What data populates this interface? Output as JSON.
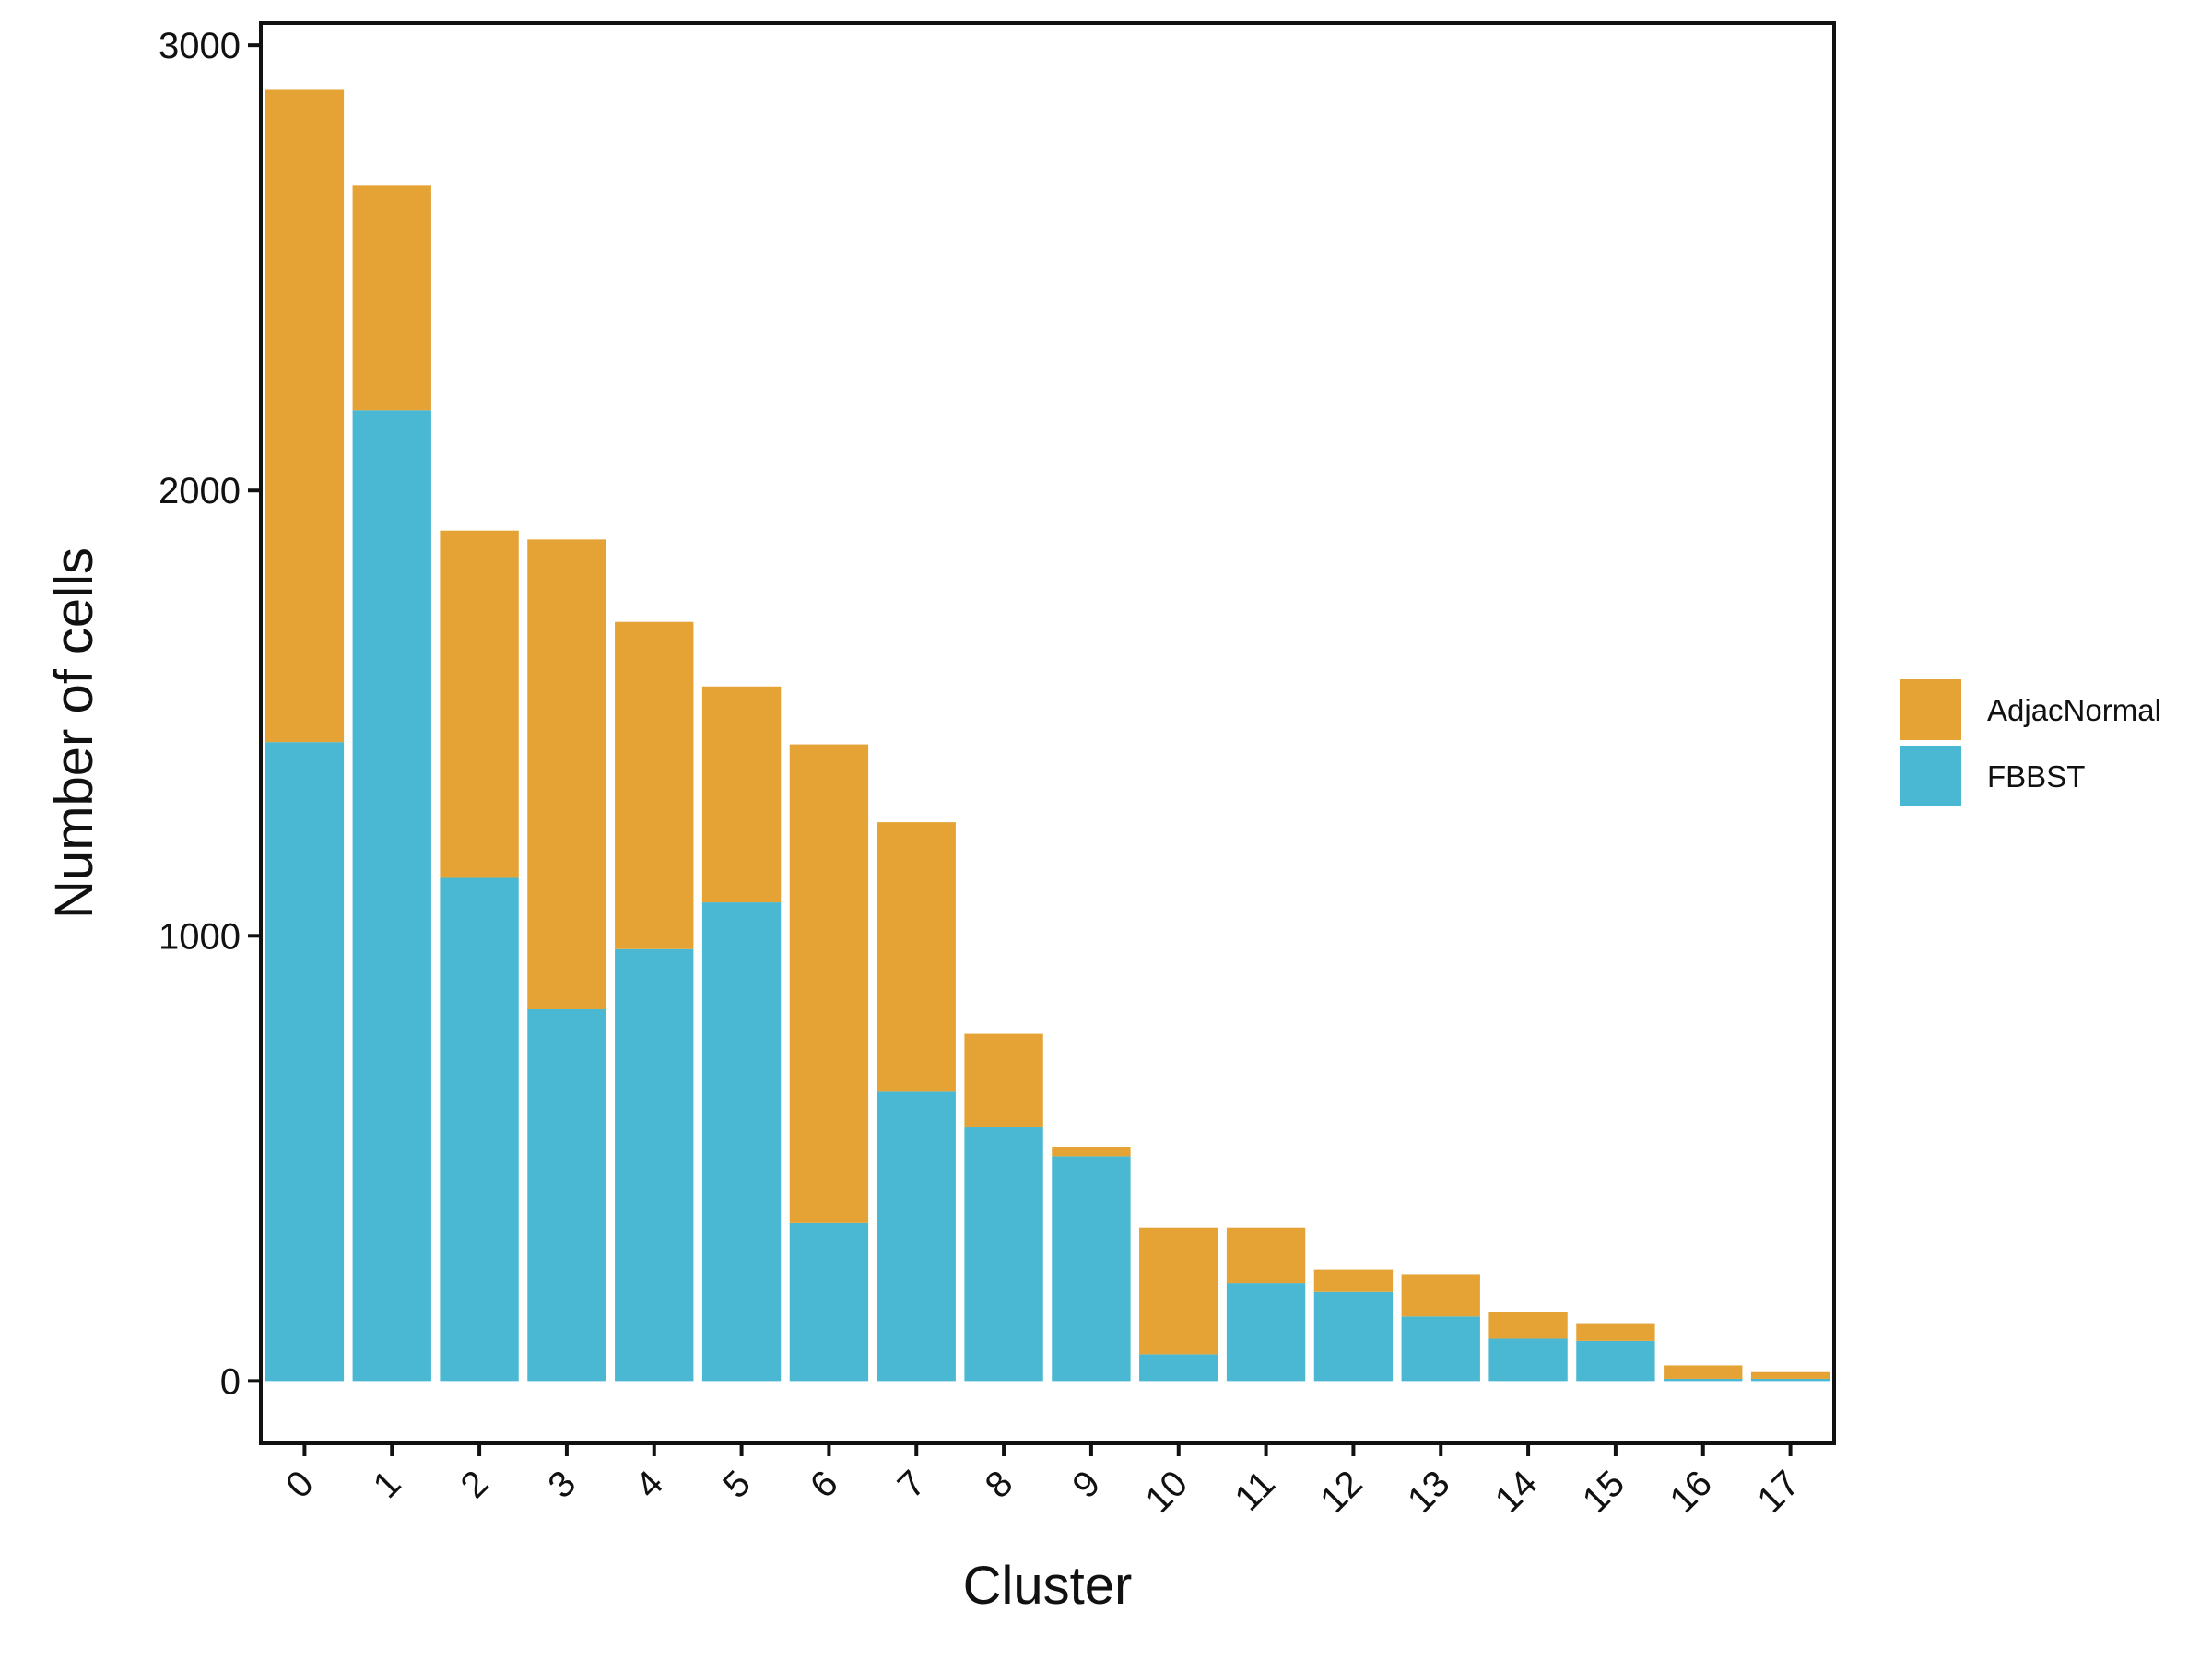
{
  "chart_data": {
    "type": "bar",
    "stacked": true,
    "title": "",
    "xlabel": "Cluster",
    "ylabel": "Number of cells",
    "ylim": [
      -140,
      3050
    ],
    "yticks": [
      0,
      1000,
      2000,
      3000
    ],
    "categories": [
      "0",
      "1",
      "2",
      "3",
      "4",
      "5",
      "6",
      "7",
      "8",
      "9",
      "10",
      "11",
      "12",
      "13",
      "14",
      "15",
      "16",
      "17"
    ],
    "series": [
      {
        "name": "FBBST",
        "color": "#4AB8D2",
        "values": [
          1435,
          2180,
          1130,
          835,
          970,
          1075,
          355,
          650,
          570,
          505,
          60,
          220,
          200,
          145,
          95,
          90,
          5,
          5
        ]
      },
      {
        "name": "AdjacNormal",
        "color": "#E5A335",
        "values": [
          1465,
          505,
          780,
          1055,
          735,
          485,
          1075,
          605,
          210,
          20,
          285,
          125,
          50,
          95,
          60,
          40,
          30,
          15
        ]
      }
    ],
    "legend": {
      "position": "right",
      "order": [
        "AdjacNormal",
        "FBBST"
      ]
    }
  }
}
